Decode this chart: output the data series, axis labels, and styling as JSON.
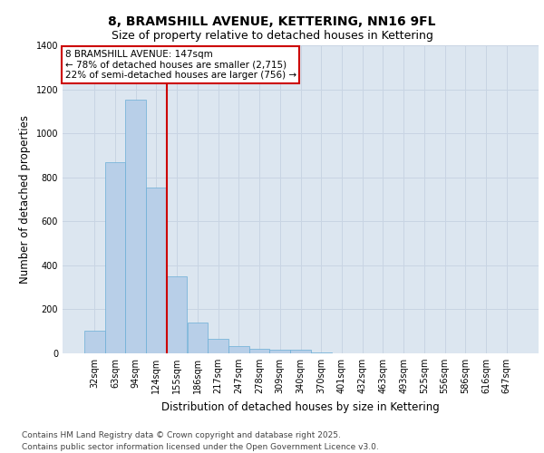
{
  "title": "8, BRAMSHILL AVENUE, KETTERING, NN16 9FL",
  "subtitle": "Size of property relative to detached houses in Kettering",
  "xlabel": "Distribution of detached houses by size in Kettering",
  "ylabel": "Number of detached properties",
  "categories": [
    "32sqm",
    "63sqm",
    "94sqm",
    "124sqm",
    "155sqm",
    "186sqm",
    "217sqm",
    "247sqm",
    "278sqm",
    "309sqm",
    "340sqm",
    "370sqm",
    "401sqm",
    "432sqm",
    "463sqm",
    "493sqm",
    "525sqm",
    "556sqm",
    "586sqm",
    "616sqm",
    "647sqm"
  ],
  "values": [
    105,
    870,
    1155,
    755,
    350,
    140,
    65,
    35,
    20,
    16,
    15,
    5,
    2,
    0,
    0,
    0,
    0,
    0,
    0,
    0,
    0
  ],
  "bar_color": "#b8cfe8",
  "bar_edge_color": "#6baed6",
  "grid_color": "#c8d4e3",
  "bg_color": "#dce6f0",
  "red_line_index": 3.5,
  "red_line_color": "#cc0000",
  "annotation_text": "8 BRAMSHILL AVENUE: 147sqm\n← 78% of detached houses are smaller (2,715)\n22% of semi-detached houses are larger (756) →",
  "annotation_box_color": "#cc0000",
  "ylim": [
    0,
    1400
  ],
  "yticks": [
    0,
    200,
    400,
    600,
    800,
    1000,
    1200,
    1400
  ],
  "footer_text": "Contains HM Land Registry data © Crown copyright and database right 2025.\nContains public sector information licensed under the Open Government Licence v3.0.",
  "title_fontsize": 10,
  "subtitle_fontsize": 9,
  "axis_label_fontsize": 8.5,
  "tick_fontsize": 7,
  "footer_fontsize": 6.5,
  "annotation_fontsize": 7.5
}
